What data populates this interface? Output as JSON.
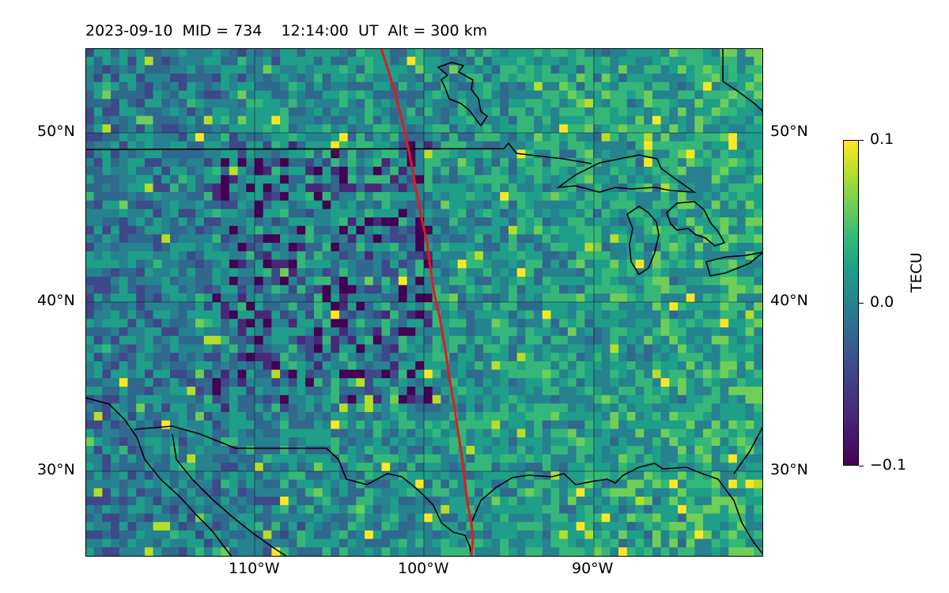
{
  "title": "2023-09-10  MID = 734    12:14:00  UT  Alt = 300 km",
  "map": {
    "projection": "plate carree",
    "lon_range": [
      -120,
      -80
    ],
    "lat_range": [
      25,
      55
    ],
    "lat_labels": [
      "50°N",
      "40°N",
      "30°N"
    ],
    "lon_labels": [
      "110°W",
      "100°W",
      "90°W"
    ],
    "grid": true,
    "track_color": "#e41a1c",
    "coastline_color": "#000000"
  },
  "colorbar": {
    "title": "TECU",
    "colormap": "viridis",
    "vmin": -0.1,
    "vmax": 0.1,
    "tick_labels": [
      "0.1",
      "0.0",
      "−0.1"
    ]
  }
}
